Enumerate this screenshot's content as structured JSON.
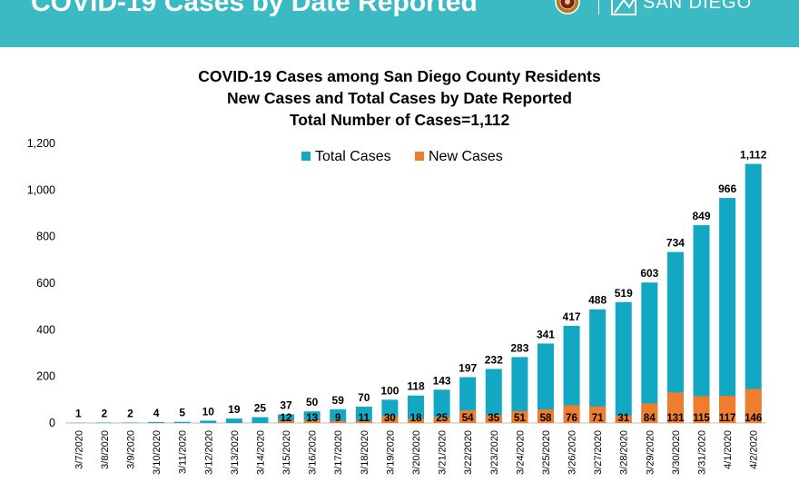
{
  "header": {
    "title": "COVID-19 Cases by Date Reported",
    "logo_text": "SAN DIEGO",
    "seal_icon": "county-seal-icon",
    "logo_icon": "live-well-logo-icon"
  },
  "colors": {
    "header_bg": "#3bbac4",
    "total": "#12a7c2",
    "new": "#ee7d2d"
  },
  "chart_data": {
    "type": "bar",
    "title_lines": [
      "COVID-19 Cases among San Diego County Residents",
      "New Cases and Total Cases by Date Reported",
      "Total Number of Cases=1,112"
    ],
    "categories": [
      "3/7/2020",
      "3/8/2020",
      "3/9/2020",
      "3/10/2020",
      "3/11/2020",
      "3/12/2020",
      "3/13/2020",
      "3/14/2020",
      "3/15/2020",
      "3/16/2020",
      "3/17/2020",
      "3/18/2020",
      "3/19/2020",
      "3/20/2020",
      "3/21/2020",
      "3/22/2020",
      "3/23/2020",
      "3/24/2020",
      "3/25/2020",
      "3/26/2020",
      "3/27/2020",
      "3/28/2020",
      "3/29/2020",
      "3/30/2020",
      "3/31/2020",
      "4/1/2020",
      "4/2/2020"
    ],
    "series": [
      {
        "name": "Total Cases",
        "values": [
          1,
          2,
          2,
          4,
          5,
          10,
          19,
          25,
          37,
          50,
          59,
          70,
          100,
          118,
          143,
          197,
          232,
          283,
          341,
          417,
          488,
          519,
          603,
          734,
          849,
          966,
          1112
        ],
        "labels": [
          "1",
          "2",
          "2",
          "4",
          "5",
          "10",
          "19",
          "25",
          "37",
          "50",
          "59",
          "70",
          "100",
          "118",
          "143",
          "197",
          "232",
          "283",
          "341",
          "417",
          "488",
          "519",
          "603",
          "734",
          "849",
          "966",
          "1,112"
        ]
      },
      {
        "name": "New Cases",
        "values": [
          null,
          null,
          null,
          null,
          null,
          null,
          null,
          null,
          12,
          13,
          9,
          11,
          30,
          18,
          25,
          54,
          35,
          51,
          58,
          76,
          71,
          31,
          84,
          131,
          115,
          117,
          146
        ],
        "labels": [
          "",
          "",
          "",
          "",
          "",
          "",
          "",
          "",
          "12",
          "13",
          "9",
          "11",
          "30",
          "18",
          "25",
          "54",
          "35",
          "51",
          "58",
          "76",
          "71",
          "31",
          "84",
          "131",
          "115",
          "117",
          "146"
        ]
      }
    ],
    "yticks": [
      0,
      200,
      400,
      600,
      800,
      1000,
      1200
    ],
    "ytick_labels": [
      "0",
      "200",
      "400",
      "600",
      "800",
      "1,000",
      "1,200"
    ],
    "ylim": [
      0,
      1200
    ],
    "legend_position": "top-center",
    "grid": false,
    "xlabel": "",
    "ylabel": ""
  }
}
